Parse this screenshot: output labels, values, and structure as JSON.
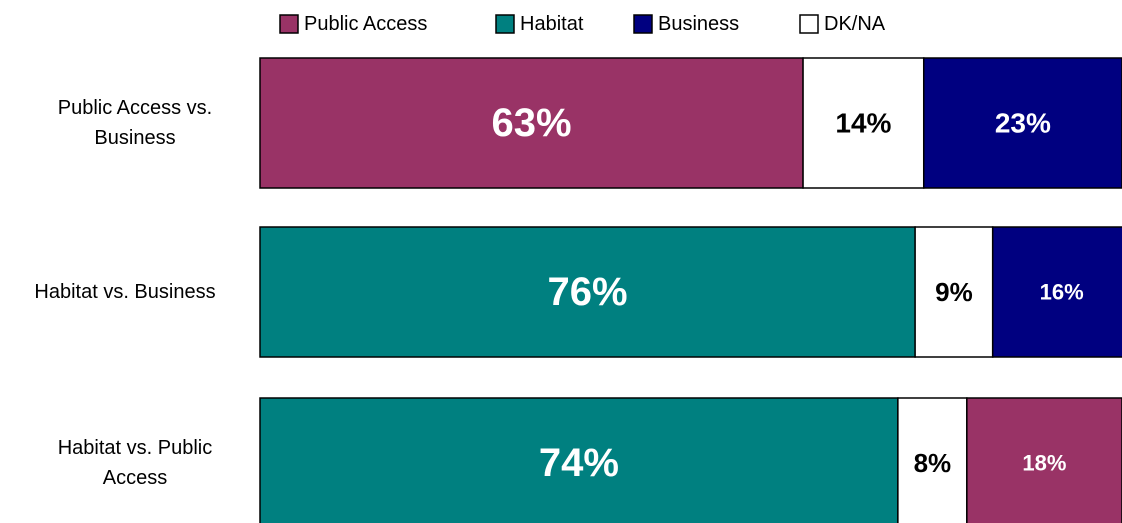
{
  "chart_data": {
    "type": "stacked-bar-horizontal",
    "xlim": [
      0,
      100
    ],
    "legend": [
      {
        "name": "Public Access",
        "color": "#993366"
      },
      {
        "name": "Habitat",
        "color": "#008080"
      },
      {
        "name": "Business",
        "color": "#000080"
      },
      {
        "name": "DK/NA",
        "color": "#ffffff"
      }
    ],
    "bars": [
      {
        "label": "Public Access vs. Business",
        "segments": [
          {
            "series": "Public Access",
            "value": 63,
            "value_label": "63%"
          },
          {
            "series": "DK/NA",
            "value": 14,
            "value_label": "14%"
          },
          {
            "series": "Business",
            "value": 23,
            "value_label": "23%"
          }
        ]
      },
      {
        "label": "Habitat vs. Business",
        "segments": [
          {
            "series": "Habitat",
            "value": 76,
            "value_label": "76%"
          },
          {
            "series": "DK/NA",
            "value": 9,
            "value_label": "9%"
          },
          {
            "series": "Business",
            "value": 16,
            "value_label": "16%"
          }
        ]
      },
      {
        "label": "Habitat vs. Public Access",
        "segments": [
          {
            "series": "Habitat",
            "value": 74,
            "value_label": "74%"
          },
          {
            "series": "DK/NA",
            "value": 8,
            "value_label": "8%"
          },
          {
            "series": "Public Access",
            "value": 18,
            "value_label": "18%"
          }
        ]
      }
    ]
  }
}
